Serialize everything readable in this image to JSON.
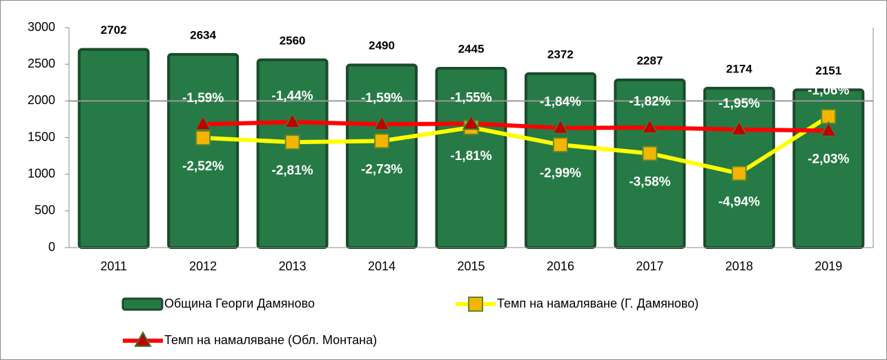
{
  "chart_data": {
    "type": "bar",
    "categories": [
      "2011",
      "2012",
      "2013",
      "2014",
      "2015",
      "2016",
      "2017",
      "2018",
      "2019"
    ],
    "ylim": [
      0,
      3000
    ],
    "yticks": [
      0,
      500,
      1000,
      1500,
      2000,
      2500,
      3000
    ],
    "y2lim": [
      -10,
      5
    ],
    "series": [
      {
        "name": "Община Георги Дамяново",
        "type": "bar",
        "color": "#267a45",
        "values": [
          2702,
          2634,
          2560,
          2490,
          2445,
          2372,
          2287,
          2174,
          2151
        ]
      },
      {
        "name": "Темп на намаляване (Г. Дамяново)",
        "type": "line",
        "axis": "y2",
        "color": "#ffff00",
        "marker": "square",
        "marker_color": "#f5b400",
        "values": [
          null,
          -2.52,
          -2.81,
          -2.73,
          -1.81,
          -2.99,
          -3.58,
          -4.94,
          -1.06
        ],
        "value_labels": [
          null,
          "-2,52%",
          "-2,81%",
          "-2,73%",
          "-1,81%",
          "-2,99%",
          "-3,58%",
          "-4,94%",
          "-1,06%"
        ]
      },
      {
        "name": "Темп на намаляване (Обл. Монтана)",
        "type": "line",
        "axis": "y2",
        "color": "#ff0000",
        "marker": "triangle",
        "marker_color": "#c00000",
        "values": [
          null,
          -1.59,
          -1.44,
          -1.59,
          -1.55,
          -1.84,
          -1.82,
          -1.95,
          -2.03
        ],
        "value_labels": [
          null,
          "-1,59%",
          "-1,44%",
          "-1,59%",
          "-1,55%",
          "-1,84%",
          "-1,82%",
          "-1,95%",
          "-2,03%"
        ]
      }
    ]
  }
}
